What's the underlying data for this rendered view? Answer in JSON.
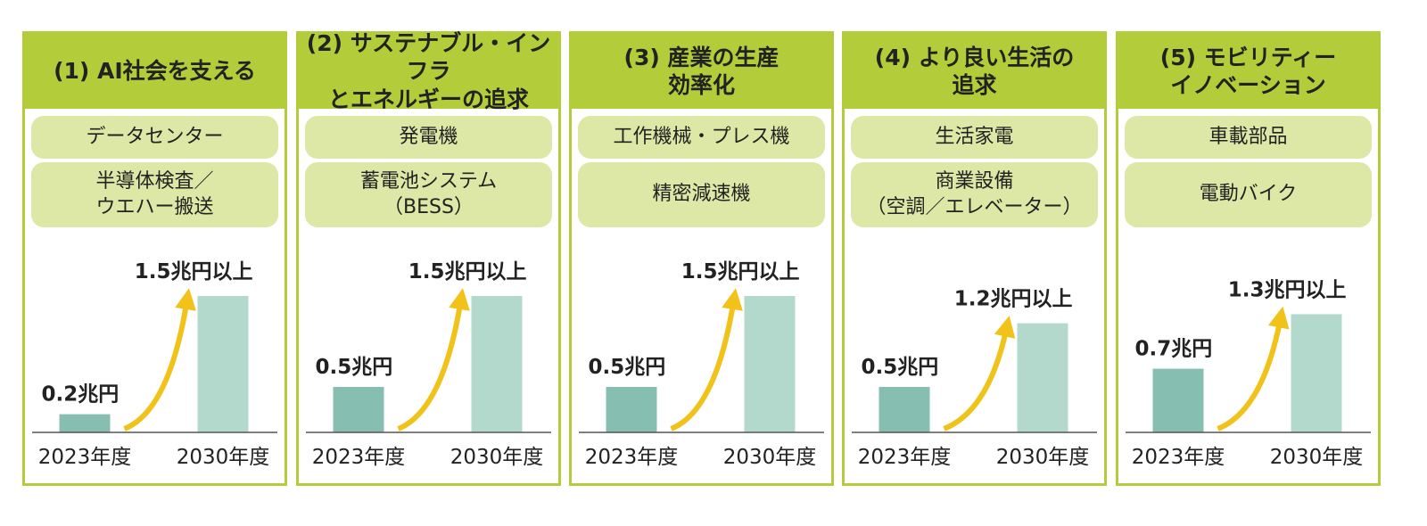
{
  "chart_data": [
    {
      "type": "bar",
      "title": "(1) AI社会を支える",
      "items": [
        "データセンター",
        "半導体検査／\nウエハー搬送"
      ],
      "categories": [
        "2023年度",
        "2030年度"
      ],
      "values": [
        0.2,
        1.5
      ],
      "value_labels": [
        "0.2兆円",
        "1.5兆円以上"
      ],
      "colors": [
        "#86bfb2",
        "#b3d8cc"
      ]
    },
    {
      "type": "bar",
      "title": "(2) サステナブル・インフラ\nとエネルギーの追求",
      "items": [
        "発電機",
        "蓄電池システム\n（BESS）"
      ],
      "categories": [
        "2023年度",
        "2030年度"
      ],
      "values": [
        0.5,
        1.5
      ],
      "value_labels": [
        "0.5兆円",
        "1.5兆円以上"
      ],
      "colors": [
        "#86bfb2",
        "#b3d8cc"
      ]
    },
    {
      "type": "bar",
      "title": "(3) 産業の生産\n効率化",
      "items": [
        "工作機械・プレス機",
        "精密減速機"
      ],
      "categories": [
        "2023年度",
        "2030年度"
      ],
      "values": [
        0.5,
        1.5
      ],
      "value_labels": [
        "0.5兆円",
        "1.5兆円以上"
      ],
      "colors": [
        "#86bfb2",
        "#b3d8cc"
      ]
    },
    {
      "type": "bar",
      "title": "(4) より良い生活の\n追求",
      "items": [
        "生活家電",
        "商業設備\n（空調／エレベーター）"
      ],
      "categories": [
        "2023年度",
        "2030年度"
      ],
      "values": [
        0.5,
        1.2
      ],
      "value_labels": [
        "0.5兆円",
        "1.2兆円以上"
      ],
      "colors": [
        "#86bfb2",
        "#b3d8cc"
      ]
    },
    {
      "type": "bar",
      "title": "(5) モビリティー\nイノベーション",
      "items": [
        "車載部品",
        "電動バイク"
      ],
      "categories": [
        "2023年度",
        "2030年度"
      ],
      "values": [
        0.7,
        1.3
      ],
      "value_labels": [
        "0.7兆円",
        "1.3兆円以上"
      ],
      "colors": [
        "#86bfb2",
        "#b3d8cc"
      ]
    }
  ]
}
